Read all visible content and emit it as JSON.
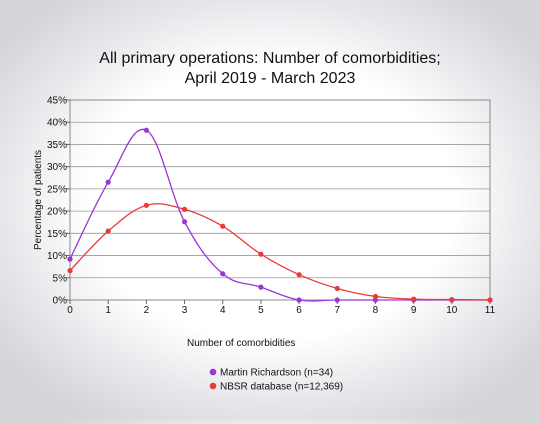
{
  "chart_data": {
    "type": "line",
    "title_lines": [
      "All primary operations: Number of comorbidities;",
      "April 2019 - March 2023"
    ],
    "xlabel": "Number of comorbidities",
    "ylabel": "Percentage of patients",
    "x": [
      0,
      1,
      2,
      3,
      4,
      5,
      6,
      7,
      8,
      9,
      10,
      11
    ],
    "x_tick_labels": [
      "0",
      "1",
      "2",
      "3",
      "4",
      "5",
      "6",
      "7",
      "8",
      "9",
      "10",
      "11"
    ],
    "xlim": [
      0,
      11
    ],
    "ylim": [
      0,
      45
    ],
    "y_ticks": [
      0,
      5,
      10,
      15,
      20,
      25,
      30,
      35,
      40,
      45
    ],
    "y_tick_labels": [
      "0%",
      "5%",
      "10%",
      "15%",
      "20%",
      "25%",
      "30%",
      "35%",
      "40%",
      "45%"
    ],
    "grid": true,
    "legend_position": "bottom",
    "series": [
      {
        "name": "Martin Richardson (n=34)",
        "color": "#9b36d6",
        "values": [
          9.2,
          26.5,
          38.2,
          17.6,
          5.9,
          2.9,
          0,
          0,
          0,
          0,
          0,
          0
        ]
      },
      {
        "name": "NBSR database (n=12,369)",
        "color": "#e83a3a",
        "values": [
          6.6,
          15.5,
          21.3,
          20.4,
          16.6,
          10.3,
          5.7,
          2.6,
          0.8,
          0.2,
          0.1,
          0
        ]
      }
    ]
  }
}
